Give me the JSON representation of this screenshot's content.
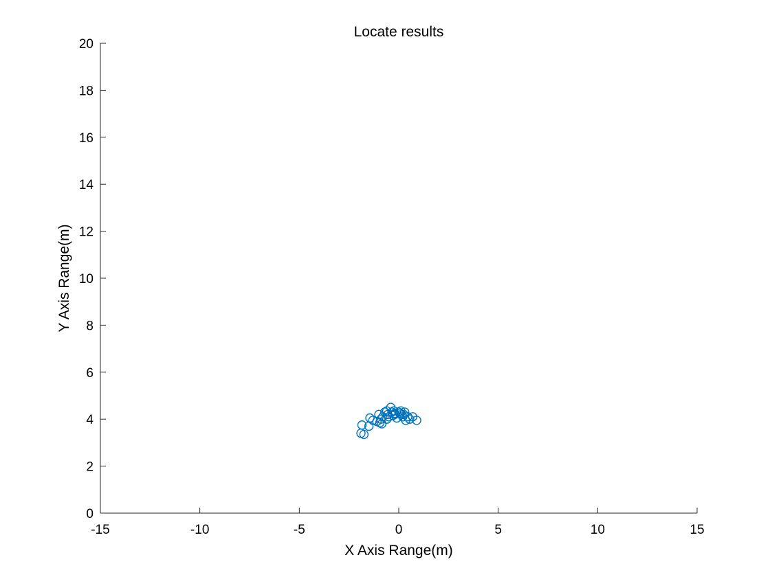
{
  "chart_data": {
    "type": "scatter",
    "title": "Locate results",
    "xlabel": "X Axis Range(m)",
    "ylabel": "Y Axis Range(m)",
    "xlim": [
      -15,
      15
    ],
    "ylim": [
      0,
      20
    ],
    "xticks": [
      -15,
      -10,
      -5,
      0,
      5,
      10,
      15
    ],
    "yticks": [
      0,
      2,
      4,
      6,
      8,
      10,
      12,
      14,
      16,
      18,
      20
    ],
    "grid": false,
    "marker": "circle-open",
    "color": "#0072BD",
    "series": [
      {
        "x": [
          -1.9,
          -1.75,
          -1.85,
          -1.5,
          -1.45,
          -1.3,
          -1.1,
          -1.0,
          -0.95,
          -0.9,
          -0.85,
          -0.8,
          -0.7,
          -0.6,
          -0.55,
          -0.5,
          -0.4,
          -0.35,
          -0.3,
          -0.25,
          -0.2,
          -0.1,
          0.0,
          0.05,
          0.1,
          0.15,
          0.2,
          0.3,
          0.35,
          0.45,
          0.55,
          0.7,
          0.9,
          -0.6,
          -0.2,
          0.25
        ],
        "y": [
          3.4,
          3.35,
          3.75,
          3.7,
          4.05,
          3.95,
          3.9,
          4.2,
          3.85,
          4.0,
          3.8,
          4.1,
          4.3,
          4.0,
          4.2,
          4.1,
          4.5,
          4.3,
          4.15,
          4.35,
          4.2,
          4.05,
          4.3,
          4.25,
          4.35,
          4.2,
          4.1,
          4.3,
          3.95,
          4.1,
          4.0,
          4.1,
          3.95,
          4.35,
          4.25,
          4.2
        ]
      }
    ]
  }
}
